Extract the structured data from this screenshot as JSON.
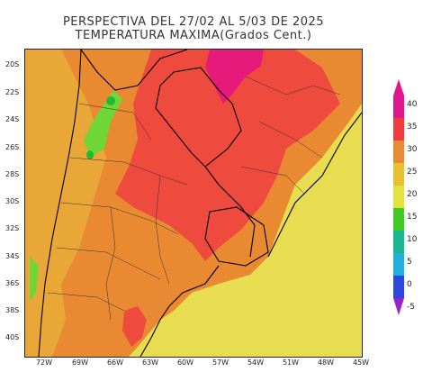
{
  "header": {
    "title_line1": "PERSPECTIVA DEL 27/02 AL 5/03 DE 2025",
    "title_line2": "TEMPERATURA MAXIMA(Grados Cent.)"
  },
  "axes": {
    "lat_labels": [
      "20S",
      "22S",
      "24S",
      "26S",
      "28S",
      "30S",
      "32S",
      "34S",
      "36S",
      "38S",
      "40S"
    ],
    "lon_labels": [
      "72W",
      "69W",
      "66W",
      "63W",
      "60W",
      "57W",
      "54W",
      "51W",
      "48W",
      "45W"
    ]
  },
  "colorbar": {
    "labels": [
      "40",
      "35",
      "30",
      "25",
      "20",
      "15",
      "10",
      "5",
      "0",
      "-5"
    ],
    "colors": [
      "#e0168c",
      "#f03c3c",
      "#ea8a32",
      "#e8c030",
      "#e4e23c",
      "#3fcc22",
      "#18b890",
      "#20b0e0",
      "#2a48e0",
      "#9a22c8"
    ],
    "extend_top_color": "#e0168c",
    "extend_bottom_color": "#9a22c8"
  },
  "fill_colors": {
    "yellow": "#e8dd50",
    "light_orange": "#e9a738",
    "orange": "#e98a33",
    "red": "#ef4a3e",
    "magenta": "#e61a7a",
    "green": "#6ed636",
    "dark_green": "#22b833"
  }
}
